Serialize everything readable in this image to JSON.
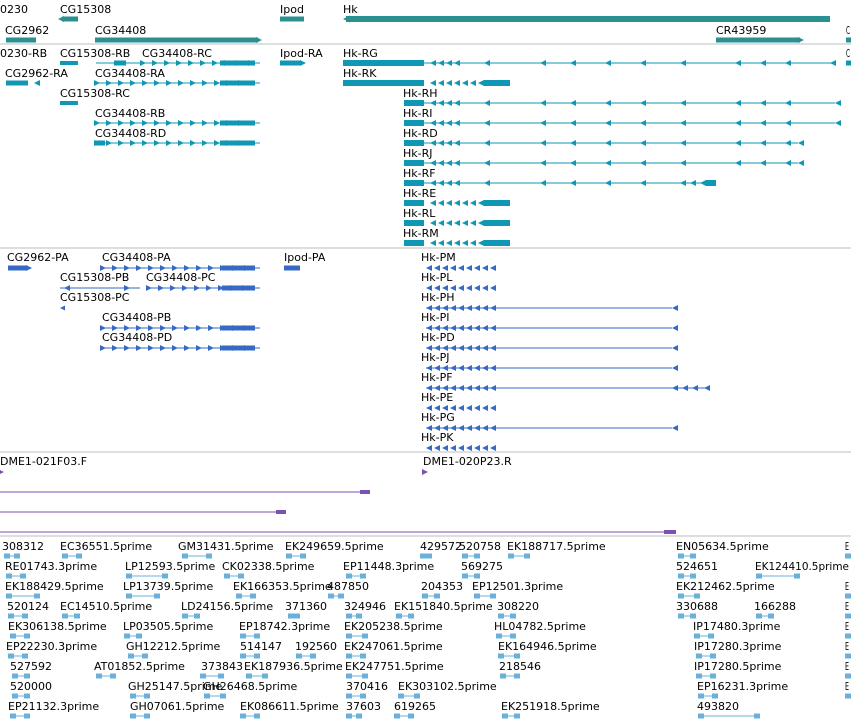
{
  "colors": {
    "gene": "#2a9190",
    "transcript": "#0f97b3",
    "protein": "#3669c5",
    "clone": "#7c52b0",
    "est": "#6ab0d8",
    "separator": "#bdbdbd"
  },
  "tracks": {
    "genes": [
      "0230",
      "CG15308",
      "Ipod",
      "Hk",
      "CG2962",
      "CG34408",
      "CR43959",
      "C"
    ],
    "transcripts": [
      "0230-RB",
      "CG15308-RB",
      "CG34408-RC",
      "Ipod-RA",
      "Hk-RG",
      "CG2962-RA",
      "CG34408-RA",
      "Hk-RK",
      "CG15308-RC",
      "Hk-RH",
      "CG34408-RB",
      "Hk-RI",
      "CG34408-RD",
      "Hk-RD",
      "Hk-RJ",
      "Hk-RF",
      "Hk-RE",
      "Hk-RL",
      "Hk-RM",
      "C"
    ],
    "proteins": [
      "CG2962-PA",
      "CG34408-PA",
      "Ipod-PA",
      "Hk-PM",
      "CG15308-PB",
      "CG34408-PC",
      "Hk-PL",
      "CG15308-PC",
      "Hk-PH",
      "CG34408-PB",
      "Hk-PI",
      "CG34408-PD",
      "Hk-PD",
      "Hk-PJ",
      "Hk-PF",
      "Hk-PE",
      "Hk-PG",
      "Hk-PK"
    ],
    "clones": [
      "DME1-021F03.F",
      "DME1-020P23.R"
    ],
    "ests": [
      "308312",
      "EC36551.5prime",
      "GM31431.5prime",
      "EK249659.5prime",
      "429572",
      "520758",
      "EK188717.5prime",
      "EN05634.5prime",
      "E",
      "RE01743.3prime",
      "LP12593.5prime",
      "CK02338.5prime",
      "EP11448.3prime",
      "569275",
      "524651",
      "EK124410.5prime",
      "EK188429.5prime",
      "LP13739.5prime",
      "EK166353.5prime",
      "487850",
      "204353",
      "EP12501.3prime",
      "EK212462.5prime",
      "E",
      "520124",
      "EC14510.5prime",
      "LD24156.5prime",
      "371360",
      "324946",
      "EK151840.5prime",
      "308220",
      "330688",
      "166288",
      "E",
      "EK306138.5prime",
      "LP03505.5prime",
      "EP18742.3prime",
      "EK205238.5prime",
      "HL04782.5prime",
      "IP17480.3prime",
      "E",
      "EP22230.3prime",
      "GH12212.5prime",
      "514147",
      "192560",
      "EK247061.5prime",
      "EK164946.5prime",
      "IP17280.3prime",
      "E",
      "527592",
      "AT01852.5prime",
      "373843",
      "EK187936.5prime",
      "EK247751.5prime",
      "218546",
      "IP17280.5prime",
      "E",
      "520000",
      "GH25147.5prime",
      "GH26468.5prime",
      "370416",
      "EK303102.5prime",
      "EP16231.3prime",
      "E",
      "EP21132.3prime",
      "GH07061.5prime",
      "EK086611.5prime",
      "37603",
      "619265",
      "EK251918.5prime",
      "493820"
    ]
  }
}
